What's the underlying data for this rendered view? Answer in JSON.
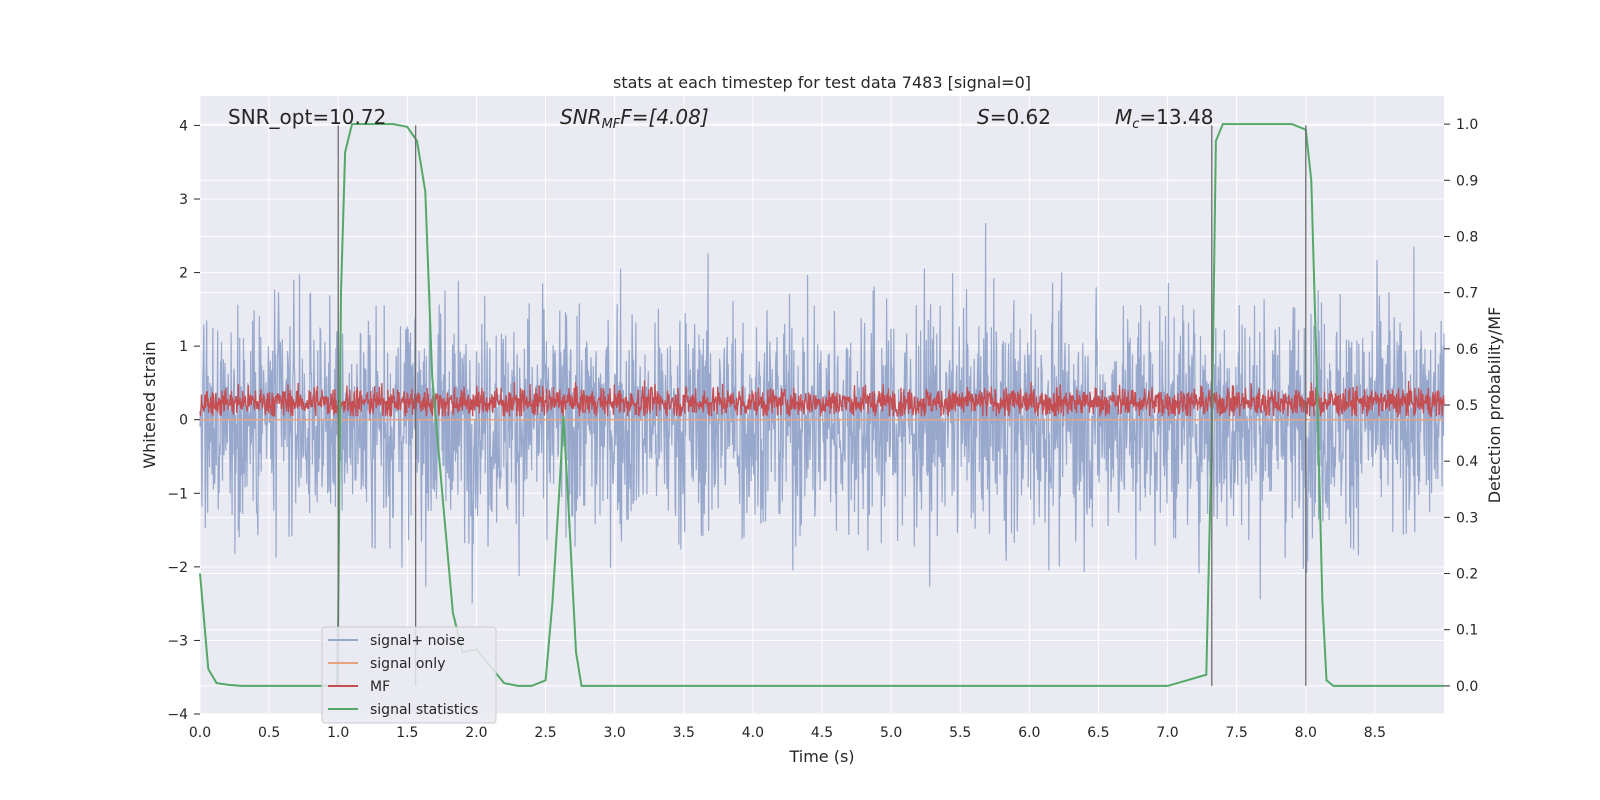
{
  "chart_data": {
    "type": "line",
    "title": "stats at each timestep for test data 7483 [signal=0]",
    "xlabel": "Time (s)",
    "ylabel": "Whitened strain",
    "y2label": "Detection probability/MF",
    "xlim": [
      0,
      9
    ],
    "ylim": [
      -4,
      4.4
    ],
    "y2lim": [
      -0.05,
      1.05
    ],
    "xticks": [
      "0.0",
      "0.5",
      "1.0",
      "1.5",
      "2.0",
      "2.5",
      "3.0",
      "3.5",
      "4.0",
      "4.5",
      "5.0",
      "5.5",
      "6.0",
      "6.5",
      "7.0",
      "7.5",
      "8.0",
      "8.5"
    ],
    "yticks": [
      "4",
      "3",
      "2",
      "1",
      "0",
      "−1",
      "−2",
      "−3",
      "−4"
    ],
    "y2ticks": [
      "1.0",
      "0.9",
      "0.8",
      "0.7",
      "0.6",
      "0.5",
      "0.4",
      "0.3",
      "0.2",
      "0.1",
      "0.0"
    ],
    "grid": true,
    "annotations": {
      "snr_opt": "SNR_opt=10.72",
      "snr_mf_base": "SNR",
      "snr_mf_sub": "MF",
      "snr_mf_rest": "F=[4.08]",
      "s_italic": "S",
      "s_rest": "=0.62",
      "mc_base": "M",
      "mc_sub": "c",
      "mc_rest": "=13.48"
    },
    "legend": {
      "position": "lower-left",
      "entries": [
        {
          "label": "signal+ noise",
          "color": "#97a8cc"
        },
        {
          "label": "signal only",
          "color": "#e8a27e"
        },
        {
          "label": "MF",
          "color": "#c44e52"
        },
        {
          "label": "signal statistics",
          "color": "#55a868"
        }
      ]
    },
    "series": [
      {
        "name": "signal+ noise",
        "axis": "left",
        "style": "dense noise, amplitude about ±3"
      },
      {
        "name": "signal only",
        "axis": "left",
        "values_constant": 0
      },
      {
        "name": "MF",
        "axis": "right",
        "style": "dense noise between 0.48 and 0.57"
      },
      {
        "name": "signal statistics",
        "axis": "right",
        "x": [
          0.0,
          0.06,
          0.12,
          0.2,
          0.3,
          0.6,
          0.99,
          1.0,
          1.02,
          1.05,
          1.1,
          1.15,
          1.2,
          1.3,
          1.4,
          1.5,
          1.57,
          1.63,
          1.68,
          1.75,
          1.83,
          1.9,
          2.0,
          2.1,
          2.2,
          2.3,
          2.4,
          2.5,
          2.55,
          2.6,
          2.63,
          2.67,
          2.72,
          2.76,
          2.8,
          3.0,
          4.0,
          5.0,
          6.0,
          7.0,
          7.28,
          7.32,
          7.35,
          7.4,
          7.6,
          7.9,
          8.0,
          8.04,
          8.08,
          8.12,
          8.15,
          8.2,
          8.5,
          9.0
        ],
        "y": [
          0.2,
          0.03,
          0.005,
          0.002,
          0.0,
          0.0,
          0.0,
          0.12,
          0.7,
          0.95,
          1.0,
          1.0,
          1.0,
          1.0,
          1.0,
          0.995,
          0.97,
          0.88,
          0.55,
          0.35,
          0.13,
          0.06,
          0.065,
          0.035,
          0.005,
          0.0,
          0.0,
          0.01,
          0.15,
          0.35,
          0.48,
          0.3,
          0.06,
          0.0,
          0.0,
          0.0,
          0.0,
          0.0,
          0.0,
          0.0,
          0.02,
          0.45,
          0.97,
          1.0,
          1.0,
          1.0,
          0.99,
          0.9,
          0.55,
          0.15,
          0.01,
          0.0,
          0.0,
          0.0
        ]
      }
    ],
    "vertical_markers": [
      {
        "x": 1.0,
        "y_from": -4,
        "y_to": 4
      },
      {
        "x": 1.56,
        "y_from": -4,
        "y_to": 4
      },
      {
        "x": 7.32,
        "y_from": -4,
        "y_to": 4
      },
      {
        "x": 8.0,
        "y_from": -4,
        "y_to": 4
      }
    ]
  }
}
